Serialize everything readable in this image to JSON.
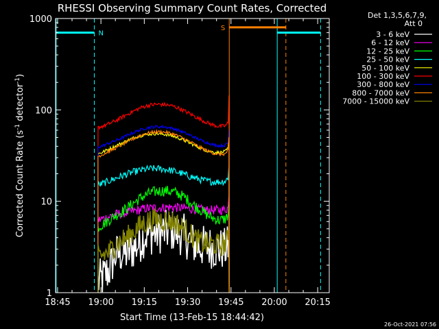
{
  "chart_data": {
    "type": "line",
    "title": "RHESSI Observing Summary Count Rates, Corrected",
    "xlabel": "Start Time (13-Feb-15 18:44:42)",
    "ylabel_main": "Corrected Count Rate (s",
    "ylabel_sup1": "-1",
    "ylabel_mid": " detector",
    "ylabel_sup2": "-1",
    "ylabel_end": ")",
    "yscale": "log",
    "ylim": [
      1,
      1000
    ],
    "xlim_minutes": [
      -0.7,
      94
    ],
    "x_unit": "minutes after 18:45",
    "x_ticks": [
      {
        "m": 0,
        "label": "18:45"
      },
      {
        "m": 15,
        "label": "19:00"
      },
      {
        "m": 30,
        "label": "19:15"
      },
      {
        "m": 45,
        "label": "19:30"
      },
      {
        "m": 60,
        "label": "19:45"
      },
      {
        "m": 75,
        "label": "20:00"
      },
      {
        "m": 90,
        "label": "20:15"
      }
    ],
    "y_ticks": [
      {
        "v": 1,
        "label": "1"
      },
      {
        "v": 10,
        "label": "10"
      },
      {
        "v": 100,
        "label": "100"
      },
      {
        "v": 1000,
        "label": "1000"
      }
    ],
    "legend_header": [
      "Det 1,3,5,6,7,9,",
      "Att 0"
    ],
    "legend_position": "right",
    "timestamp": "26-Oct-2021 07:56",
    "series": [
      {
        "name": "3 - 6 keV",
        "color": "#ffffff",
        "noise": 0.55,
        "x": [
          14,
          16,
          18,
          20,
          22,
          24,
          26,
          28,
          30,
          32,
          34,
          36,
          38,
          40,
          42,
          44,
          46,
          48,
          50,
          52,
          54,
          56,
          58,
          59
        ],
        "y": [
          1.3,
          1.5,
          1.8,
          2.6,
          2.7,
          2.7,
          3.0,
          3.4,
          4.2,
          4.4,
          4.5,
          4.6,
          4.7,
          4.8,
          4.5,
          4.2,
          3.6,
          3.3,
          3.2,
          3.2,
          3.1,
          3.0,
          3.0,
          3.2
        ]
      },
      {
        "name": "6 - 12 keV",
        "color": "#ff00ff",
        "noise": 0.12,
        "x": [
          14,
          16,
          18,
          20,
          22,
          24,
          26,
          28,
          30,
          32,
          34,
          36,
          38,
          40,
          42,
          44,
          46,
          48,
          50,
          52,
          54,
          56,
          58,
          59
        ],
        "y": [
          6.2,
          6.5,
          6.8,
          7.2,
          7.4,
          7.5,
          7.8,
          8.0,
          8.3,
          8.4,
          8.5,
          8.5,
          8.6,
          8.6,
          8.5,
          8.4,
          8.3,
          8.2,
          8.1,
          8.0,
          8.0,
          8.0,
          8.1,
          8.5
        ]
      },
      {
        "name": "12 - 25 keV",
        "color": "#00ff00",
        "noise": 0.14,
        "x": [
          14,
          16,
          18,
          20,
          22,
          24,
          26,
          28,
          30,
          32,
          34,
          36,
          38,
          40,
          42,
          44,
          46,
          48,
          50,
          52,
          54,
          56,
          58,
          59
        ],
        "y": [
          5.2,
          5.7,
          6.3,
          7.0,
          7.6,
          8.4,
          9.4,
          10.5,
          11.5,
          12.3,
          12.8,
          13.0,
          13.0,
          12.7,
          12.0,
          11.0,
          9.8,
          8.7,
          7.8,
          7.0,
          6.5,
          6.2,
          6.4,
          7.0
        ]
      },
      {
        "name": "25 - 50 keV",
        "color": "#00ffff",
        "noise": 0.09,
        "x": [
          14,
          16,
          18,
          20,
          22,
          24,
          26,
          28,
          30,
          32,
          34,
          36,
          38,
          40,
          42,
          44,
          46,
          48,
          50,
          52,
          54,
          56,
          58,
          59
        ],
        "y": [
          15.0,
          15.8,
          16.8,
          17.8,
          18.8,
          19.8,
          20.8,
          21.6,
          22.3,
          22.7,
          22.8,
          22.6,
          22.2,
          21.5,
          20.6,
          19.6,
          18.6,
          17.8,
          17.1,
          16.6,
          16.3,
          16.3,
          16.6,
          18.0
        ]
      },
      {
        "name": "50 - 100 keV",
        "color": "#ffff00",
        "noise": 0.04,
        "x": [
          14,
          16,
          18,
          20,
          22,
          24,
          26,
          28,
          30,
          32,
          34,
          36,
          38,
          40,
          42,
          44,
          46,
          48,
          50,
          52,
          54,
          56,
          58,
          59
        ],
        "y": [
          33,
          35,
          37.5,
          40,
          43,
          46,
          49,
          51.5,
          53.5,
          54.5,
          55,
          54.5,
          53.5,
          51.5,
          49,
          46,
          43,
          40,
          37.5,
          35.5,
          34.5,
          34,
          35,
          38
        ]
      },
      {
        "name": "100 - 300 keV",
        "color": "#ff0000",
        "noise": 0.05,
        "x": [
          14,
          16,
          18,
          20,
          22,
          24,
          26,
          28,
          30,
          32,
          34,
          36,
          38,
          40,
          42,
          44,
          46,
          48,
          50,
          52,
          54,
          56,
          58,
          59
        ],
        "y": [
          64,
          67,
          71,
          76,
          82,
          89,
          96,
          103,
          109,
          113,
          115,
          115,
          113,
          110,
          104,
          97,
          90,
          83,
          77,
          72,
          68,
          66,
          67,
          72
        ]
      },
      {
        "name": "300 - 800 keV",
        "color": "#0000ff",
        "noise": 0.035,
        "x": [
          14,
          16,
          18,
          20,
          22,
          24,
          26,
          28,
          30,
          32,
          34,
          36,
          38,
          40,
          42,
          44,
          46,
          48,
          50,
          52,
          54,
          56,
          58,
          59
        ],
        "y": [
          39,
          41,
          43.5,
          46,
          49,
          52.5,
          56,
          59.5,
          62.5,
          64.5,
          65.5,
          65.5,
          64.5,
          62.5,
          59.5,
          56,
          52.5,
          49,
          46,
          43.5,
          41.5,
          40.5,
          41,
          44
        ]
      },
      {
        "name": "800 - 7000 keV",
        "color": "#ff8000",
        "noise": 0.04,
        "x": [
          14,
          16,
          18,
          20,
          22,
          24,
          26,
          28,
          30,
          32,
          34,
          36,
          38,
          40,
          42,
          44,
          46,
          48,
          50,
          52,
          54,
          56,
          58,
          59
        ],
        "y": [
          31,
          33,
          35.5,
          38,
          41,
          44.5,
          48,
          51.5,
          54.5,
          56.5,
          57.5,
          57.5,
          56.5,
          54.5,
          51.5,
          48,
          44.5,
          41,
          38,
          35.5,
          33.5,
          32.5,
          33,
          36
        ]
      },
      {
        "name": "7000 - 15000 keV",
        "color": "#808000",
        "noise": 0.3,
        "x": [
          14,
          16,
          18,
          20,
          22,
          24,
          26,
          28,
          30,
          32,
          34,
          36,
          38,
          40,
          42,
          44,
          46,
          48,
          50,
          52,
          54,
          56,
          58,
          59
        ],
        "y": [
          2.5,
          2.6,
          2.8,
          3.4,
          3.7,
          4.0,
          4.6,
          5.2,
          5.8,
          6.2,
          6.3,
          6.3,
          6.2,
          6.0,
          5.5,
          4.9,
          4.3,
          3.8,
          3.5,
          3.4,
          3.4,
          3.3,
          3.4,
          3.8
        ]
      }
    ],
    "annotations": {
      "night_periods": [
        {
          "start": -0.7,
          "end": 12.7,
          "color": "#00ffff",
          "label": "N",
          "level": 700
        }
      ],
      "saa_periods": [
        {
          "start": 59.4,
          "end": 79.0,
          "color": "#ff8000",
          "label": "S",
          "level": 800
        }
      ],
      "day_periods": [
        {
          "start": 76.0,
          "end": 91.0,
          "color": "#00ffff",
          "level": 700
        }
      ],
      "vertical_lines": [
        {
          "m": -0.5,
          "color": "#00ffff",
          "style": "solid"
        },
        {
          "m": 12.7,
          "color": "#00ffff",
          "style": "dashed"
        },
        {
          "m": 59.4,
          "color": "#ff8000",
          "style": "solid"
        },
        {
          "m": 76.0,
          "color": "#00ffff",
          "style": "solid"
        },
        {
          "m": 79.0,
          "color": "#ff8000",
          "style": "dashed"
        },
        {
          "m": 91.0,
          "color": "#00ffff",
          "style": "dashed"
        }
      ]
    }
  }
}
